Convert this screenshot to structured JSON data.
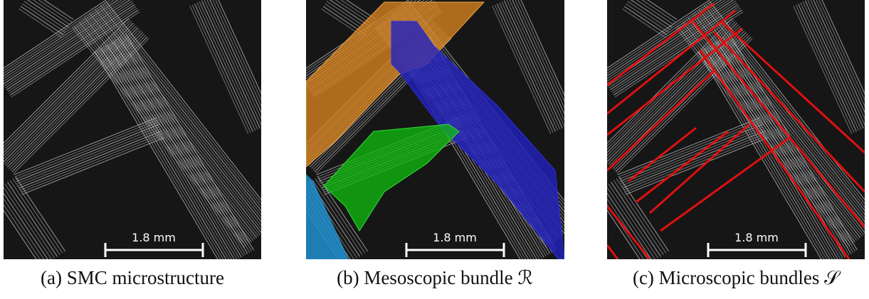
{
  "panels": [
    {
      "scale_bar": "1.8 mm",
      "caption": "(a) SMC microstructure"
    },
    {
      "scale_bar": "1.8 mm",
      "caption": "(b) Mesoscopic bundle ℛ"
    },
    {
      "scale_bar": "1.8 mm",
      "caption": "(c) Microscopic bundles 𝒮"
    }
  ]
}
